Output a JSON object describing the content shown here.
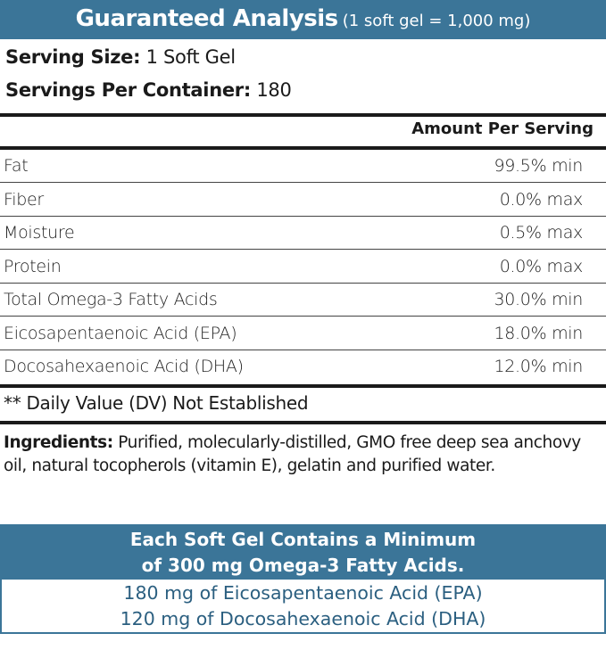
{
  "header": {
    "title": "Guaranteed Analysis",
    "subtitle": "(1 soft gel = 1,000 mg)"
  },
  "serving": {
    "size_label": "Serving Size:",
    "size_value": "1 Soft Gel",
    "per_container_label": "Servings Per Container:",
    "per_container_value": "180"
  },
  "table": {
    "column_header": "Amount Per Serving",
    "rows": [
      {
        "name": "Fat",
        "value": "99.5% min"
      },
      {
        "name": "Fiber",
        "value": "0.0% max"
      },
      {
        "name": "Moisture",
        "value": "0.5% max"
      },
      {
        "name": "Protein",
        "value": "0.0% max"
      },
      {
        "name": "Total Omega-3 Fatty Acids",
        "value": "30.0% min"
      },
      {
        "name": "Eicosapentaenoic Acid (EPA)",
        "value": "18.0% min"
      },
      {
        "name": "Docosahexaenoic Acid (DHA)",
        "value": "12.0% min"
      }
    ]
  },
  "footnote": "** Daily Value (DV) Not Established",
  "ingredients": {
    "label": "Ingredients:",
    "text": "Purified, molecularly-distilled, GMO free deep sea anchovy oil, natural tocopherols (vitamin E), gelatin and purified water."
  },
  "callout": {
    "line1": "Each Soft Gel Contains a Minimum",
    "line2": "of 300 mg Omega-3 Fatty Acids.",
    "detail1": "180 mg of Eicosapentaenoic Acid (EPA)",
    "detail2": "120 mg of Docosahexaenoic Acid (DHA)"
  },
  "colors": {
    "brand_blue": "#3b7598",
    "text_blue": "#2b5f80"
  }
}
